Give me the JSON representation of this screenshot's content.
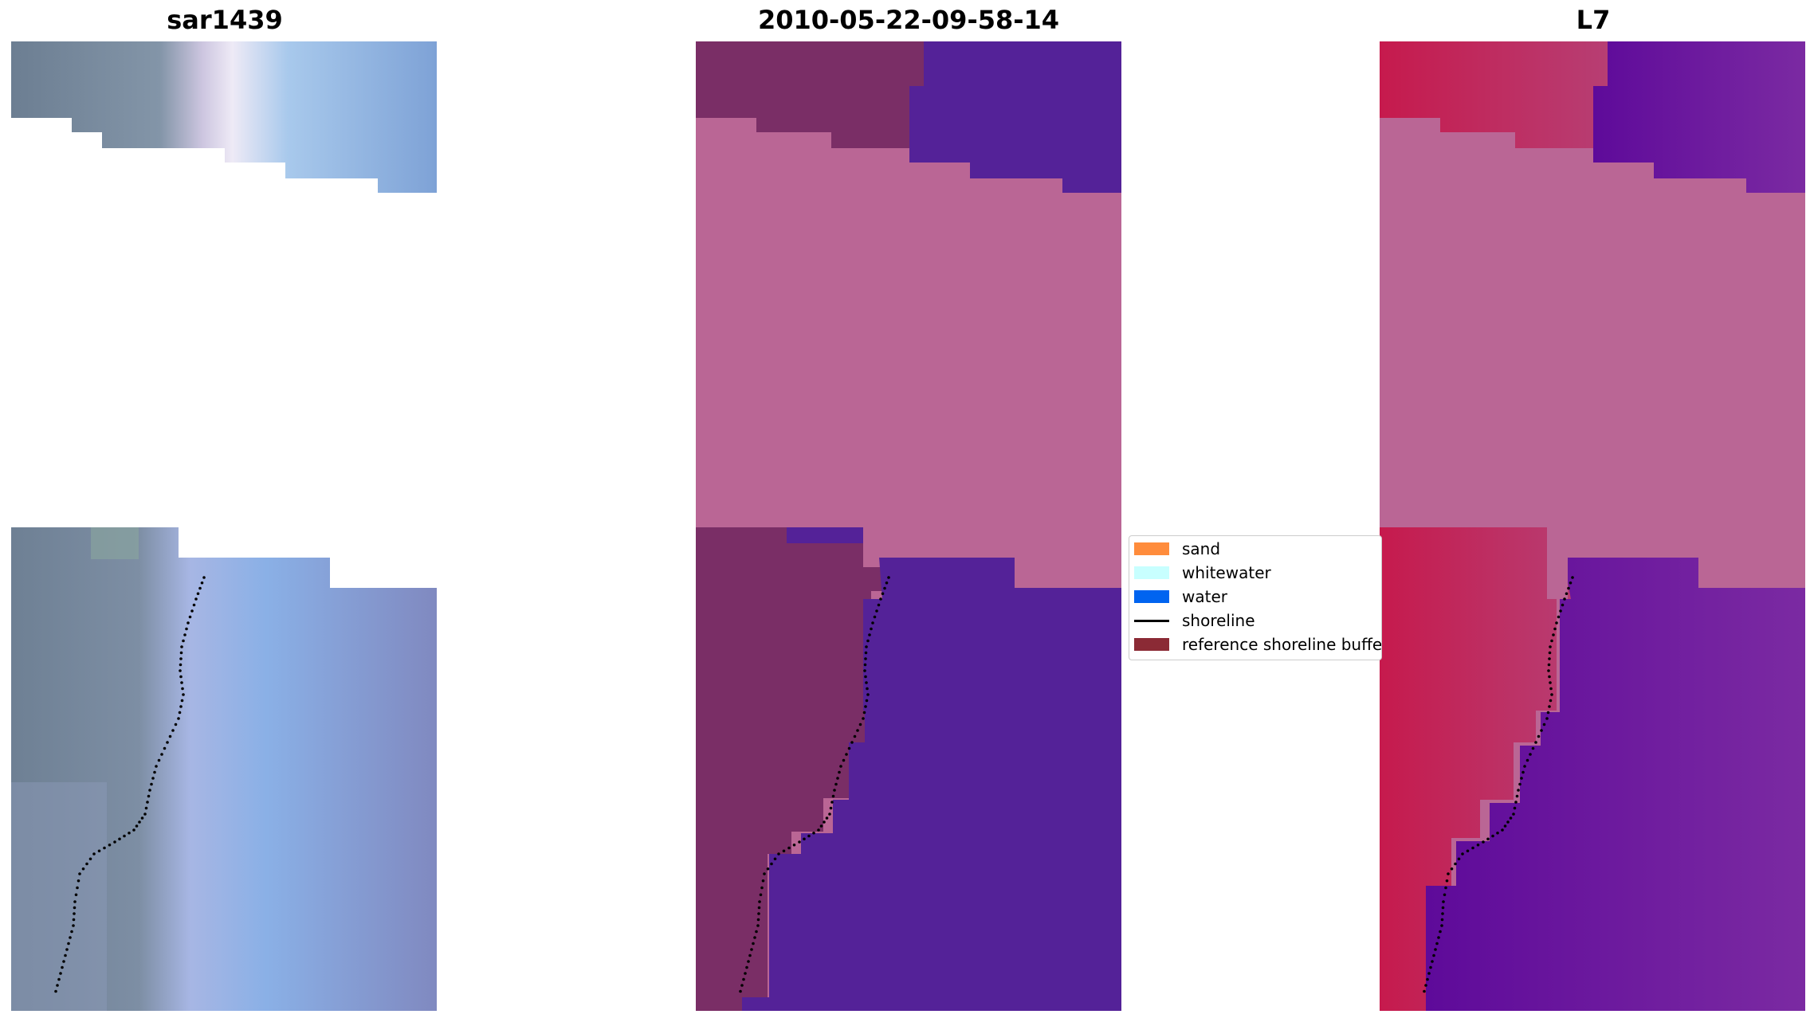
{
  "panels": [
    {
      "title": "sar1439"
    },
    {
      "title": "2010-05-22-09-58-14"
    },
    {
      "title": "L7"
    }
  ],
  "legend": {
    "items": [
      {
        "label": "sand",
        "color": "#ff8c3c",
        "kind": "patch"
      },
      {
        "label": "whitewater",
        "color": "#c8ffff",
        "kind": "patch"
      },
      {
        "label": "water",
        "color": "#0064f0",
        "kind": "patch"
      },
      {
        "label": "shoreline",
        "color": "#000000",
        "kind": "line"
      },
      {
        "label": "reference shoreline buffer",
        "color": "#8b2a35",
        "kind": "patch"
      }
    ]
  },
  "colors": {
    "rgb_land": "#6f8396",
    "rgb_water": "#86a6dd",
    "class_sand_overlay": "#7a2e66",
    "class_water": "#542298",
    "class_buffer": "#ba6695",
    "l7_sand": "#c8194e",
    "l7_water": "#6a10a0"
  }
}
